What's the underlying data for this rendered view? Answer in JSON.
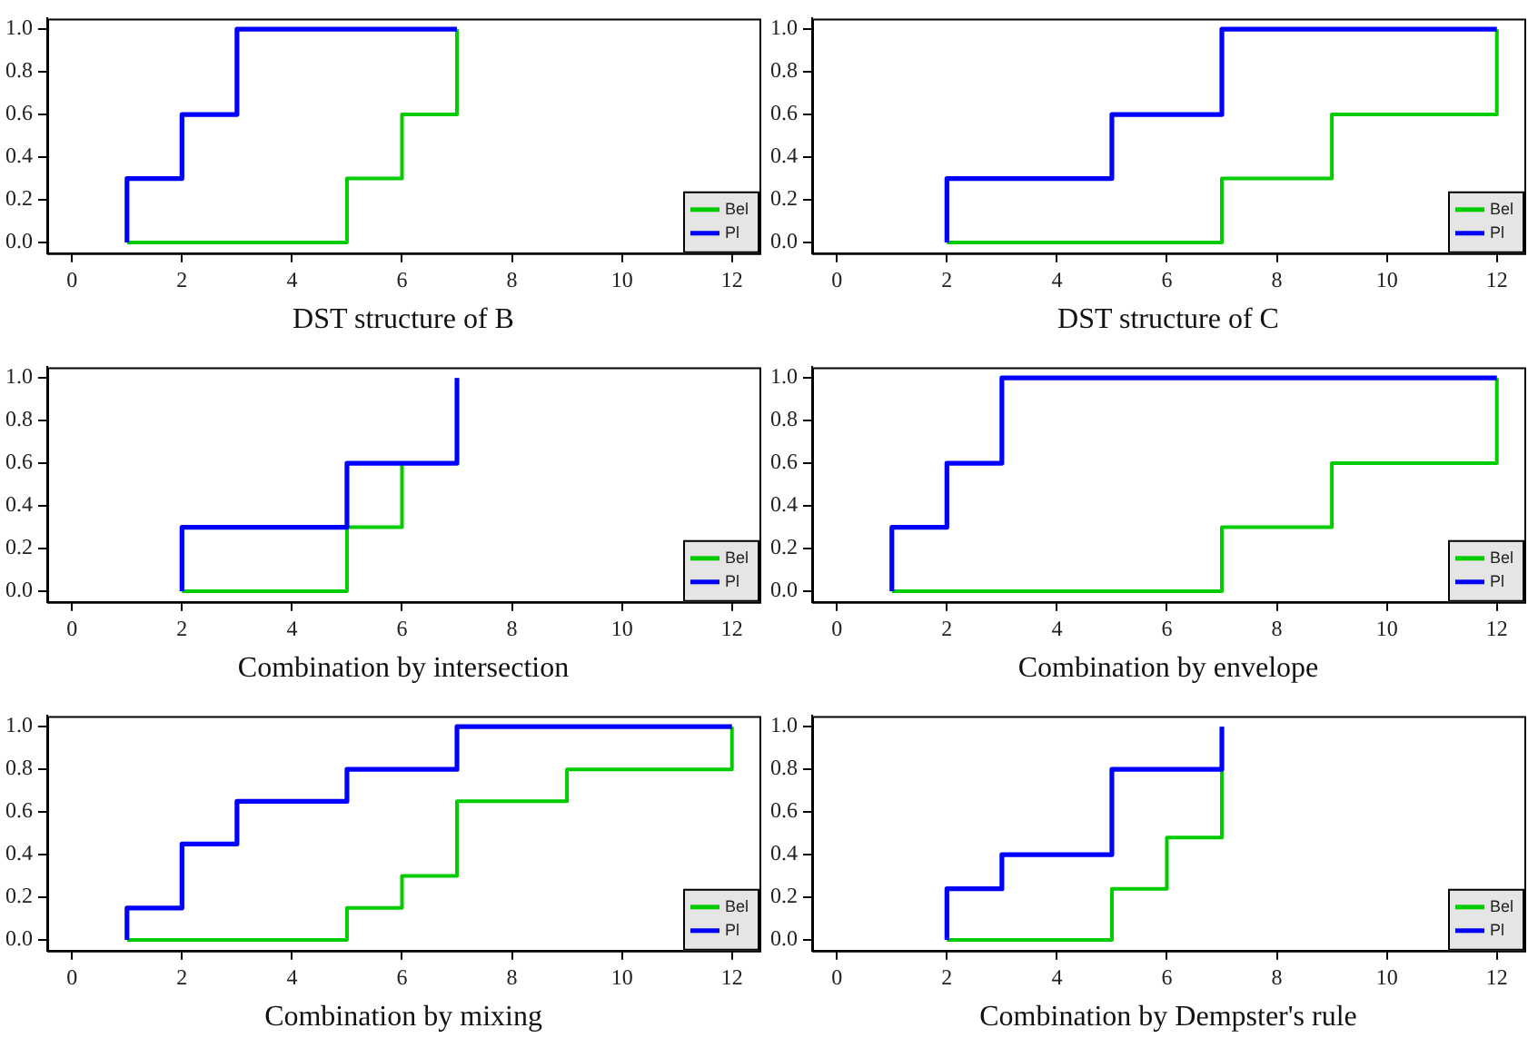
{
  "chart_data": [
    {
      "type": "step",
      "xlabel": "DST structure of B",
      "xlim": [
        -0.45,
        12.5
      ],
      "ylim": [
        -0.05,
        1.05
      ],
      "xticks": [
        0,
        2,
        4,
        6,
        8,
        10,
        12
      ],
      "yticks": [
        {
          "value": 0,
          "label": "0.0"
        },
        {
          "value": 0.2,
          "label": "0.2"
        },
        {
          "value": 0.4,
          "label": "0.4"
        },
        {
          "value": 0.6,
          "label": "0.6"
        },
        {
          "value": 0.8,
          "label": "0.8"
        },
        {
          "value": 1,
          "label": "1.0"
        }
      ],
      "grid": false,
      "legend": "bottom right",
      "series": [
        {
          "name": "Bel",
          "color": "#00cc00",
          "x": [
            1,
            5,
            6,
            7
          ],
          "values": [
            0,
            0.3,
            0.6,
            1
          ]
        },
        {
          "name": "Pl",
          "color": "#0000ff",
          "x": [
            1,
            1,
            2,
            3,
            7
          ],
          "values": [
            0,
            0.3,
            0.6,
            1,
            1
          ]
        }
      ]
    },
    {
      "type": "step",
      "xlabel": "DST structure of C",
      "xlim": [
        -0.45,
        12.5
      ],
      "ylim": [
        -0.05,
        1.05
      ],
      "xticks": [
        0,
        2,
        4,
        6,
        8,
        10,
        12
      ],
      "yticks": [
        {
          "value": 0,
          "label": "0.0"
        },
        {
          "value": 0.2,
          "label": "0.2"
        },
        {
          "value": 0.4,
          "label": "0.4"
        },
        {
          "value": 0.6,
          "label": "0.6"
        },
        {
          "value": 0.8,
          "label": "0.8"
        },
        {
          "value": 1,
          "label": "1.0"
        }
      ],
      "grid": false,
      "legend": "bottom right",
      "series": [
        {
          "name": "Bel",
          "color": "#00cc00",
          "x": [
            2,
            7,
            9,
            12
          ],
          "values": [
            0,
            0.3,
            0.6,
            1
          ]
        },
        {
          "name": "Pl",
          "color": "#0000ff",
          "x": [
            2,
            2,
            5,
            7,
            12
          ],
          "values": [
            0,
            0.3,
            0.6,
            1,
            1
          ]
        }
      ]
    },
    {
      "type": "step",
      "xlabel": "Combination by intersection",
      "xlim": [
        -0.45,
        12.5
      ],
      "ylim": [
        -0.05,
        1.05
      ],
      "xticks": [
        0,
        2,
        4,
        6,
        8,
        10,
        12
      ],
      "yticks": [
        {
          "value": 0,
          "label": "0.0"
        },
        {
          "value": 0.2,
          "label": "0.2"
        },
        {
          "value": 0.4,
          "label": "0.4"
        },
        {
          "value": 0.6,
          "label": "0.6"
        },
        {
          "value": 0.8,
          "label": "0.8"
        },
        {
          "value": 1,
          "label": "1.0"
        }
      ],
      "grid": false,
      "legend": "bottom right",
      "series": [
        {
          "name": "Bel",
          "color": "#00cc00",
          "x": [
            2,
            5,
            6,
            7
          ],
          "values": [
            0,
            0.3,
            0.6,
            1
          ]
        },
        {
          "name": "Pl",
          "color": "#0000ff",
          "x": [
            2,
            2,
            5,
            7
          ],
          "values": [
            0,
            0.3,
            0.6,
            1
          ]
        }
      ]
    },
    {
      "type": "step",
      "xlabel": "Combination by envelope",
      "xlim": [
        -0.45,
        12.5
      ],
      "ylim": [
        -0.05,
        1.05
      ],
      "xticks": [
        0,
        2,
        4,
        6,
        8,
        10,
        12
      ],
      "yticks": [
        {
          "value": 0,
          "label": "0.0"
        },
        {
          "value": 0.2,
          "label": "0.2"
        },
        {
          "value": 0.4,
          "label": "0.4"
        },
        {
          "value": 0.6,
          "label": "0.6"
        },
        {
          "value": 0.8,
          "label": "0.8"
        },
        {
          "value": 1,
          "label": "1.0"
        }
      ],
      "grid": false,
      "legend": "bottom right",
      "series": [
        {
          "name": "Bel",
          "color": "#00cc00",
          "x": [
            1,
            7,
            9,
            12
          ],
          "values": [
            0,
            0.3,
            0.6,
            1
          ]
        },
        {
          "name": "Pl",
          "color": "#0000ff",
          "x": [
            1,
            1,
            2,
            3,
            12
          ],
          "values": [
            0,
            0.3,
            0.6,
            1,
            1
          ]
        }
      ]
    },
    {
      "type": "step",
      "xlabel": "Combination by mixing",
      "xlim": [
        -0.45,
        12.5
      ],
      "ylim": [
        -0.05,
        1.05
      ],
      "xticks": [
        0,
        2,
        4,
        6,
        8,
        10,
        12
      ],
      "yticks": [
        {
          "value": 0,
          "label": "0.0"
        },
        {
          "value": 0.2,
          "label": "0.2"
        },
        {
          "value": 0.4,
          "label": "0.4"
        },
        {
          "value": 0.6,
          "label": "0.6"
        },
        {
          "value": 0.8,
          "label": "0.8"
        },
        {
          "value": 1,
          "label": "1.0"
        }
      ],
      "grid": false,
      "legend": "bottom right",
      "series": [
        {
          "name": "Bel",
          "color": "#00cc00",
          "x": [
            1,
            5,
            6,
            7,
            9,
            12
          ],
          "values": [
            0,
            0.15,
            0.3,
            0.65,
            0.8,
            1
          ]
        },
        {
          "name": "Pl",
          "color": "#0000ff",
          "x": [
            1,
            1,
            2,
            3,
            5,
            7,
            12
          ],
          "values": [
            0,
            0.15,
            0.45,
            0.65,
            0.8,
            1,
            1
          ]
        }
      ]
    },
    {
      "type": "step",
      "xlabel": "Combination by Dempster's rule",
      "xlim": [
        -0.45,
        12.5
      ],
      "ylim": [
        -0.05,
        1.05
      ],
      "xticks": [
        0,
        2,
        4,
        6,
        8,
        10,
        12
      ],
      "yticks": [
        {
          "value": 0,
          "label": "0.0"
        },
        {
          "value": 0.2,
          "label": "0.2"
        },
        {
          "value": 0.4,
          "label": "0.4"
        },
        {
          "value": 0.6,
          "label": "0.6"
        },
        {
          "value": 0.8,
          "label": "0.8"
        },
        {
          "value": 1,
          "label": "1.0"
        }
      ],
      "grid": false,
      "legend": "bottom right",
      "series": [
        {
          "name": "Bel",
          "color": "#00cc00",
          "x": [
            2,
            5,
            6,
            7
          ],
          "values": [
            0,
            0.24,
            0.48,
            1
          ]
        },
        {
          "name": "Pl",
          "color": "#0000ff",
          "x": [
            2,
            2,
            3,
            5,
            7
          ],
          "values": [
            0,
            0.24,
            0.4,
            0.8,
            1
          ]
        }
      ]
    }
  ]
}
